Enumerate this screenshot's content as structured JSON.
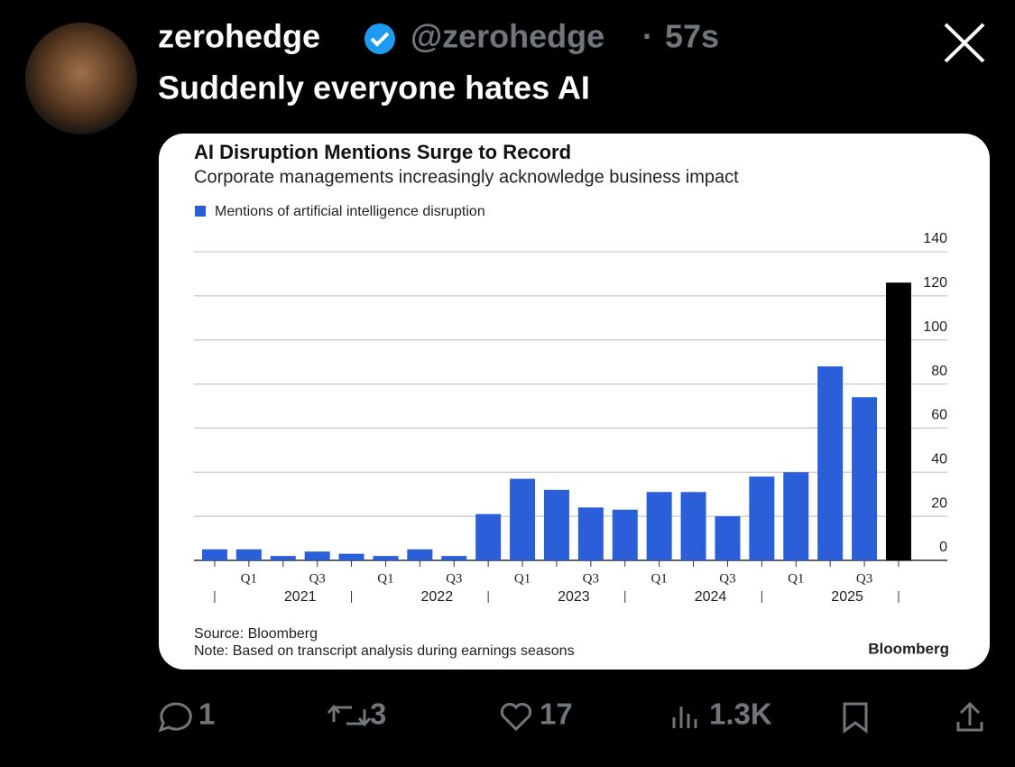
{
  "tweet": {
    "name": "zerohedge",
    "handle": "@zerohedge",
    "dot": "·",
    "time": "57s",
    "text": "Suddenly everyone hates AI",
    "replies": "1",
    "reposts": "3",
    "likes": "17",
    "views": "1.3K"
  },
  "chart_data": {
    "type": "bar",
    "title": "AI Disruption Mentions Surge to Record",
    "subtitle": "Corporate managements increasingly acknowledge business impact",
    "legend": "Mentions of artificial intelligence disruption",
    "categories": [
      null,
      "Q1",
      null,
      "Q3",
      null,
      "Q1",
      null,
      "Q3",
      null,
      "Q1",
      null,
      "Q3",
      null,
      "Q1",
      null,
      "Q3",
      null,
      "Q1",
      null,
      "Q3",
      null
    ],
    "years": [
      "2021",
      "2022",
      "2023",
      "2024",
      "2025"
    ],
    "values": [
      5,
      5,
      2,
      4,
      3,
      2,
      5,
      2,
      21,
      37,
      32,
      24,
      23,
      31,
      31,
      20,
      38,
      40,
      88,
      74,
      126
    ],
    "color": "#2b5fd9",
    "highlight_color": "#000000",
    "ylim": [
      0,
      140
    ],
    "yticks": [
      0,
      20,
      40,
      60,
      80,
      100,
      120,
      140
    ],
    "grid": true,
    "source": "Source: Bloomberg",
    "note": "Note: Based on transcript analysis during earnings seasons",
    "brand": "Bloomberg"
  }
}
